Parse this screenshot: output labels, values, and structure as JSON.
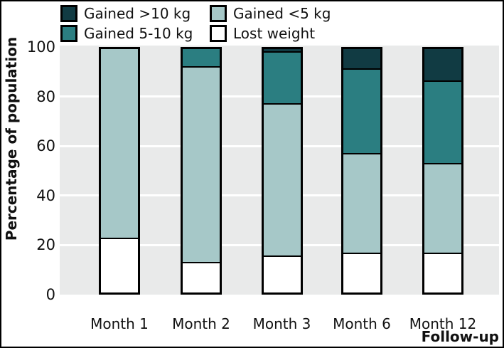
{
  "figure": {
    "ylabel": "Percentage of population",
    "xlabel": "Follow-up"
  },
  "legend": [
    {
      "label": "Gained >10 kg",
      "color": "#113b43"
    },
    {
      "label": "Gained <5 kg",
      "color": "#a6c8c8"
    },
    {
      "label": "Gained 5-10 kg",
      "color": "#2b7e81"
    },
    {
      "label": "Lost weight",
      "color": "#ffffff"
    }
  ],
  "colors": {
    "plot_background": "#e9eaea",
    "gridline": "#ffffff",
    "bar_border": "#000000",
    "frame": "#000000",
    "dark_teal": "#113b43",
    "mid_teal": "#2b7e81",
    "light_teal": "#a6c8c8",
    "white": "#ffffff"
  },
  "chart_data": {
    "type": "bar",
    "stacked": true,
    "title": "",
    "xlabel": "Follow-up",
    "ylabel": "Percentage of population",
    "categories": [
      "Month 1",
      "Month 2",
      "Month 3",
      "Month 6",
      "Month 12"
    ],
    "series": [
      {
        "name": "Gained >10 kg",
        "color": "#113b43",
        "values": [
          0,
          0,
          1,
          8,
          13
        ]
      },
      {
        "name": "Gained 5-10 kg",
        "color": "#2b7e81",
        "values": [
          0,
          7,
          21,
          35,
          34
        ]
      },
      {
        "name": "Gained <5 kg",
        "color": "#a6c8c8",
        "values": [
          78,
          81,
          63,
          41,
          37
        ]
      },
      {
        "name": "Lost weight",
        "color": "#ffffff",
        "values": [
          22,
          12,
          15,
          16,
          16
        ]
      }
    ],
    "ylim": [
      0,
      100
    ],
    "yticks": [
      0,
      20,
      40,
      60,
      80,
      100
    ],
    "grid": true,
    "legend_position": "top-left"
  }
}
